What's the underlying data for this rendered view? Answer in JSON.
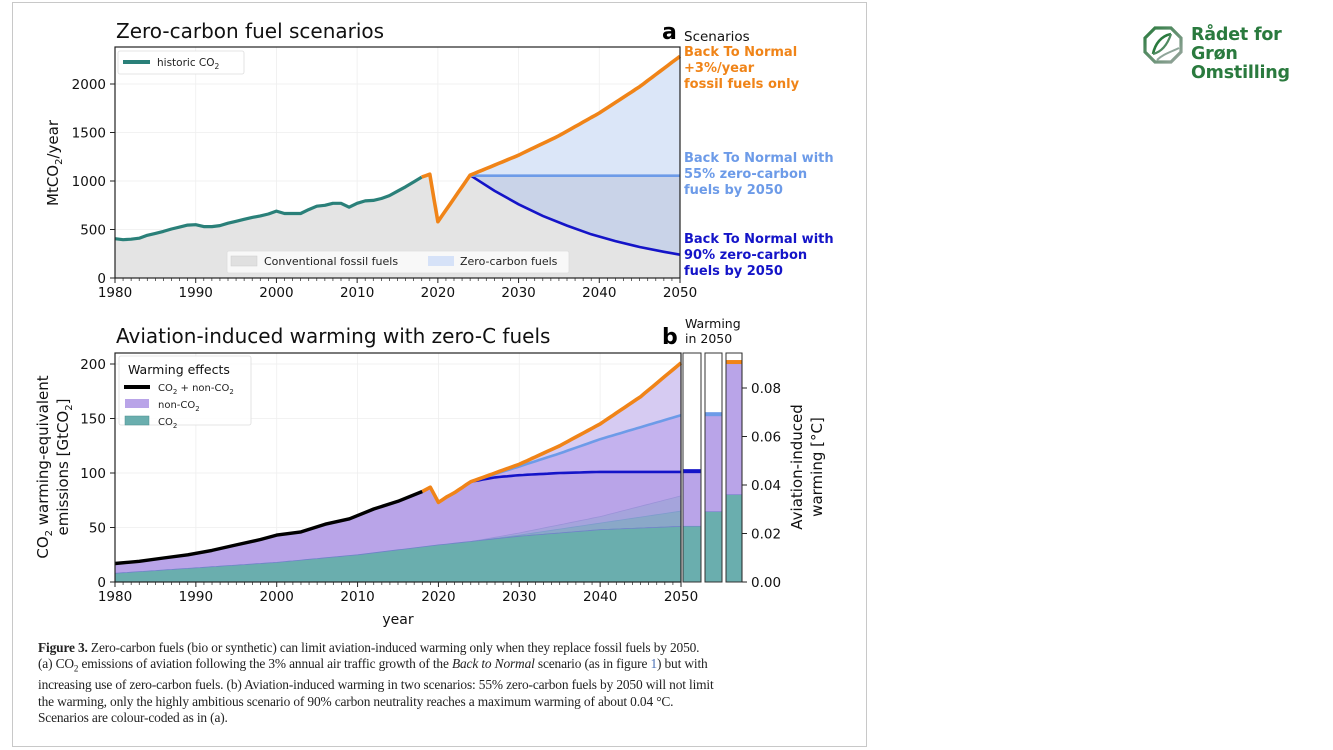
{
  "branding": {
    "logo_icon": "leaf-globe-icon",
    "logo_lines": [
      "Rådet for",
      "Grøn",
      "Omstilling"
    ],
    "color": "#2a7a3e"
  },
  "colors": {
    "historic": "#2a8079",
    "orange": "#f08418",
    "light_blue": "#6d9be8",
    "dark_blue": "#1414c8",
    "fossil_fill": "#e4e4e4",
    "zero_carbon_fill": "#dbe6f8",
    "non_co2_fill": "#b9a4e8",
    "co2_fill": "#6aaeae",
    "black": "#000000"
  },
  "caption": {
    "figure_label": "Figure 3.",
    "line1": " Zero-carbon fuels (bio or synthetic) can limit aviation-induced warming only when they replace fossil fuels by 2050.",
    "line2a": "(a) CO",
    "line2_sub": "2",
    "line2b": " emissions of aviation following the 3% annual air traffic growth of the ",
    "line2_italic": "Back to Normal",
    "line2c": " scenario (as in figure ",
    "line2_link": "1",
    "line2d": ") but with",
    "line3": "increasing use of zero-carbon fuels. (b) Aviation-induced warming in two scenarios: 55% zero-carbon fuels by 2050 will not limit",
    "line4": "the warming, only the highly ambitious scenario of 90% carbon neutrality reaches a maximum warming of about 0.04 °C.",
    "line5": "Scenarios are colour-coded as in (a)."
  },
  "chart_data": [
    {
      "type": "line",
      "panel_label": "a",
      "title": "Zero-carbon fuel scenarios",
      "xlabel": "",
      "ylabel": "MtCO2/year",
      "xlim": [
        1980,
        2050
      ],
      "ylim": [
        0,
        2350
      ],
      "xticks": [
        1980,
        1990,
        2000,
        2010,
        2020,
        2030,
        2040,
        2050
      ],
      "yticks": [
        0,
        500,
        1000,
        1500,
        2000
      ],
      "grid": true,
      "legend_top": {
        "placement": "top-left",
        "entries": [
          "historic CO₂"
        ]
      },
      "legend_bottom": {
        "placement": "bottom-center",
        "entries": [
          "Conventional fossil fuels",
          "Zero-carbon fuels"
        ]
      },
      "scenario_header": "Scenarios",
      "scenario_labels": [
        {
          "lines": [
            "Back To Normal",
            "+3%/year",
            "fossil fuels only"
          ],
          "color_key": "orange"
        },
        {
          "lines": [
            "Back To Normal with",
            "55% zero-carbon",
            "fuels by 2050"
          ],
          "color_key": "light_blue"
        },
        {
          "lines": [
            "Back To Normal with",
            "90% zero-carbon",
            "fuels by 2050"
          ],
          "color_key": "dark_blue"
        }
      ],
      "series": [
        {
          "name": "historic CO₂",
          "x": [
            1980,
            1981,
            1982,
            1983,
            1984,
            1985,
            1986,
            1987,
            1988,
            1989,
            1990,
            1991,
            1992,
            1993,
            1994,
            1995,
            1996,
            1997,
            1998,
            1999,
            2000,
            2001,
            2002,
            2003,
            2004,
            2005,
            2006,
            2007,
            2008,
            2009,
            2010,
            2011,
            2012,
            2013,
            2014,
            2015,
            2016,
            2017,
            2018
          ],
          "y": [
            405,
            395,
            400,
            410,
            440,
            460,
            480,
            505,
            525,
            545,
            550,
            530,
            530,
            540,
            565,
            585,
            605,
            625,
            640,
            660,
            690,
            665,
            665,
            665,
            705,
            740,
            750,
            770,
            770,
            730,
            770,
            795,
            800,
            820,
            850,
            895,
            940,
            990,
            1040
          ]
        },
        {
          "name": "Back To Normal +3%/year fossil fuels only",
          "x": [
            2018,
            2019,
            2020,
            2021,
            2022,
            2023,
            2024,
            2030,
            2035,
            2040,
            2045,
            2050
          ],
          "y": [
            1040,
            1070,
            580,
            700,
            820,
            940,
            1060,
            1266,
            1467,
            1701,
            1972,
            2286
          ]
        },
        {
          "name": "Back To Normal with 55% zero-carbon fuels by 2050",
          "x": [
            2024,
            2050
          ],
          "y": [
            1055,
            1055
          ]
        },
        {
          "name": "Back To Normal with 90% zero-carbon fuels by 2050",
          "x": [
            2024,
            2027,
            2030,
            2033,
            2036,
            2039,
            2042,
            2045,
            2048,
            2050
          ],
          "y": [
            1060,
            900,
            760,
            640,
            540,
            450,
            380,
            320,
            270,
            240
          ]
        }
      ]
    },
    {
      "type": "area",
      "panel_label": "b",
      "title": "Aviation-induced warming with zero-C fuels",
      "xlabel": "year",
      "ylabel": "CO₂ warming-equivalent emissions [GtCO₂]",
      "ylabel_right": "Aviation-induced warming [°C]",
      "xlim": [
        1980,
        2050
      ],
      "ylim": [
        0,
        210
      ],
      "ylim_right": [
        0,
        0.0945
      ],
      "xticks": [
        1980,
        1990,
        2000,
        2010,
        2020,
        2030,
        2040,
        2050
      ],
      "yticks": [
        0,
        50,
        100,
        150,
        200
      ],
      "yticks_right": [
        "0.00",
        "0.02",
        "0.04",
        "0.06",
        "0.08"
      ],
      "grid": true,
      "legend": {
        "placement": "top-left",
        "title": "Warming effects",
        "entries": [
          "CO₂ + non-CO₂",
          "non-CO₂",
          "CO₂"
        ]
      },
      "inset_header": [
        "Warming",
        "in 2050"
      ],
      "series": [
        {
          "name": "CO₂ + non-CO₂ (historic)",
          "x": [
            1980,
            1983,
            1986,
            1989,
            1992,
            1995,
            1998,
            2000,
            2003,
            2006,
            2009,
            2012,
            2015,
            2018
          ],
          "y": [
            17,
            19,
            22,
            25,
            29,
            34,
            39,
            43,
            46,
            53,
            58,
            67,
            74,
            83
          ]
        },
        {
          "name": "CO₂ (historic + 90%)",
          "x": [
            1980,
            1990,
            2000,
            2010,
            2020,
            2030,
            2040,
            2050
          ],
          "y": [
            8,
            13,
            18,
            25,
            34,
            42,
            48,
            51
          ]
        },
        {
          "name": "CO₂ (55% scenario)",
          "x": [
            2024,
            2030,
            2040,
            2050
          ],
          "y": [
            37,
            43,
            54,
            65
          ]
        },
        {
          "name": "CO₂ (3% scenario)",
          "x": [
            2024,
            2030,
            2040,
            2050
          ],
          "y": [
            37,
            45,
            60,
            79
          ]
        },
        {
          "name": "total 3%/year",
          "x": [
            2018,
            2019,
            2020,
            2021,
            2022,
            2024,
            2030,
            2035,
            2040,
            2045,
            2050
          ],
          "y": [
            83,
            87,
            73,
            78,
            82,
            92,
            108,
            125,
            145,
            170,
            201
          ]
        },
        {
          "name": "total 55% zero-carbon",
          "x": [
            2024,
            2030,
            2035,
            2040,
            2045,
            2050
          ],
          "y": [
            92,
            106,
            118,
            131,
            142,
            153
          ]
        },
        {
          "name": "total 90% zero-carbon",
          "x": [
            2024,
            2027,
            2030,
            2035,
            2040,
            2045,
            2050
          ],
          "y": [
            92,
            96,
            98,
            100,
            101,
            101,
            101
          ]
        }
      ],
      "bars_2050": [
        {
          "scenario": "90% zero-carbon",
          "co2": 0.023,
          "total": 0.0455,
          "color_key": "dark_blue"
        },
        {
          "scenario": "55% zero-carbon",
          "co2": 0.029,
          "total": 0.069,
          "color_key": "light_blue"
        },
        {
          "scenario": "3%/year fossil only",
          "co2": 0.036,
          "total": 0.0905,
          "color_key": "orange"
        }
      ]
    }
  ]
}
